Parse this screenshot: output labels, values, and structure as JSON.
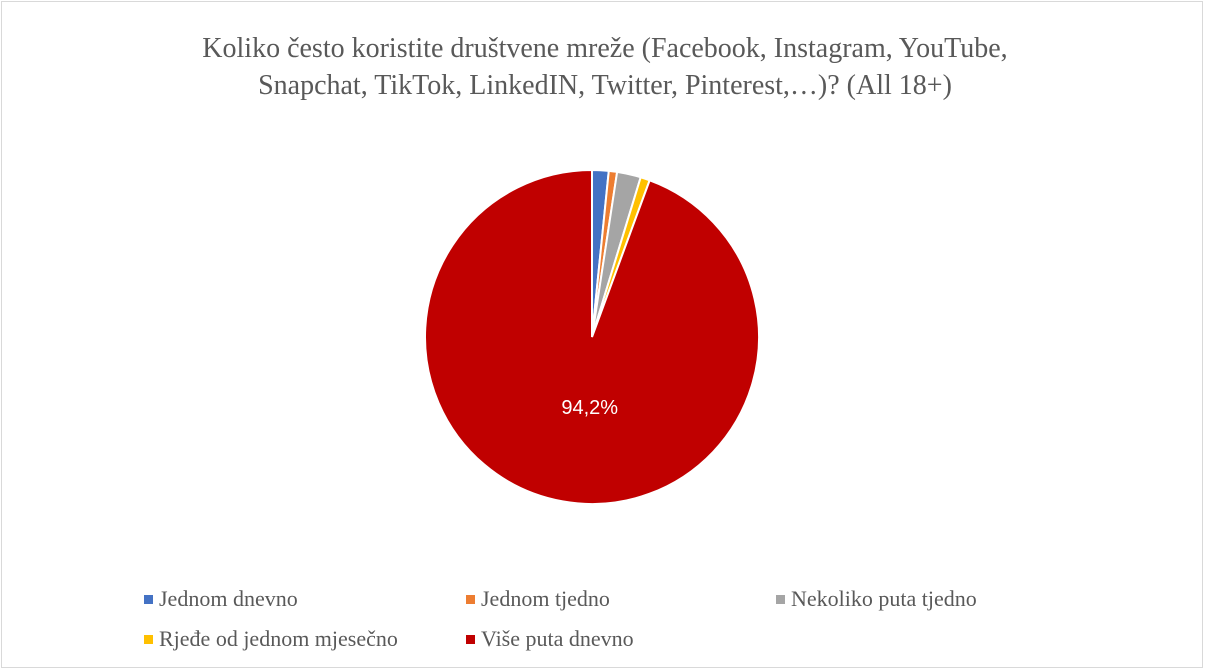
{
  "chart_data": {
    "type": "pie",
    "title_lines": [
      "Koliko često koristite društvene mreže (Facebook, Instagram, YouTube,",
      "Snapchat, TikTok, LinkedIN, Twitter, Pinterest,…)? (All 18+)"
    ],
    "categories": [
      "Jednom dnevno",
      "Jednom tjedno",
      "Nekoliko puta tjedno",
      "Rjeđe od jednom mjesečno",
      "Više puta dnevno"
    ],
    "values": [
      1.6,
      0.8,
      2.3,
      0.9,
      94.2
    ],
    "colors": [
      "#4472c4",
      "#ed7d31",
      "#a5a5a5",
      "#ffc000",
      "#c00000"
    ],
    "data_labels": [
      "",
      "",
      "",
      "",
      "94,2%"
    ],
    "legend_position": "bottom",
    "start_angle": "top, clockwise"
  }
}
